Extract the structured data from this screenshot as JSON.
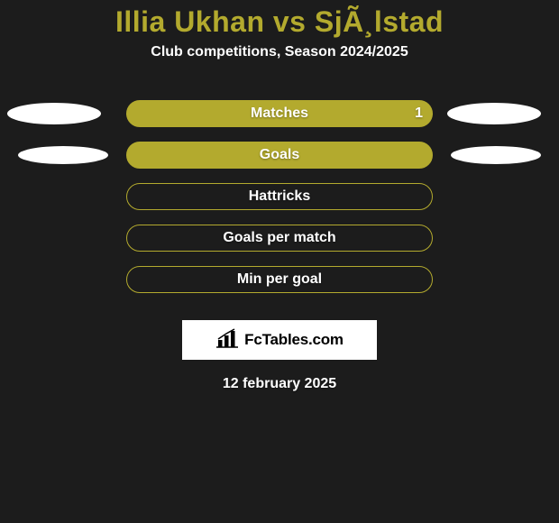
{
  "background_color": "#1c1c1c",
  "title": {
    "text": "Illia Ukhan vs SjÃ¸lstad",
    "color": "#b3aa2e",
    "fontsize": 32
  },
  "subtitle": {
    "text": "Club competitions, Season 2024/2025",
    "color": "#ffffff",
    "fontsize": 16
  },
  "bar_style": {
    "fill_color": "#b3aa2e",
    "border_color": "#b3aa2e",
    "label_color": "#ffffff",
    "value_color": "#ffffff",
    "label_fontsize": 16,
    "border_width": 1
  },
  "side_ellipse_style": {
    "fill_color": "#ffffff",
    "large_width": 104,
    "large_height": 24,
    "small_width": 100,
    "small_height": 20
  },
  "rows": [
    {
      "label": "Matches",
      "value": "1",
      "show_value": true,
      "left_ellipse": "large",
      "right_ellipse": "large",
      "solid": true
    },
    {
      "label": "Goals",
      "value": "",
      "show_value": false,
      "left_ellipse": "small",
      "right_ellipse": "small",
      "solid": true
    },
    {
      "label": "Hattricks",
      "value": "",
      "show_value": false,
      "left_ellipse": null,
      "right_ellipse": null,
      "solid": false
    },
    {
      "label": "Goals per match",
      "value": "",
      "show_value": false,
      "left_ellipse": null,
      "right_ellipse": null,
      "solid": false
    },
    {
      "label": "Min per goal",
      "value": "",
      "show_value": false,
      "left_ellipse": null,
      "right_ellipse": null,
      "solid": false
    }
  ],
  "logo": {
    "bg_color": "#ffffff",
    "text": "FcTables.com",
    "text_color": "#000000",
    "icon_color": "#000000"
  },
  "date": {
    "text": "12 february 2025",
    "color": "#ffffff",
    "fontsize": 16
  }
}
